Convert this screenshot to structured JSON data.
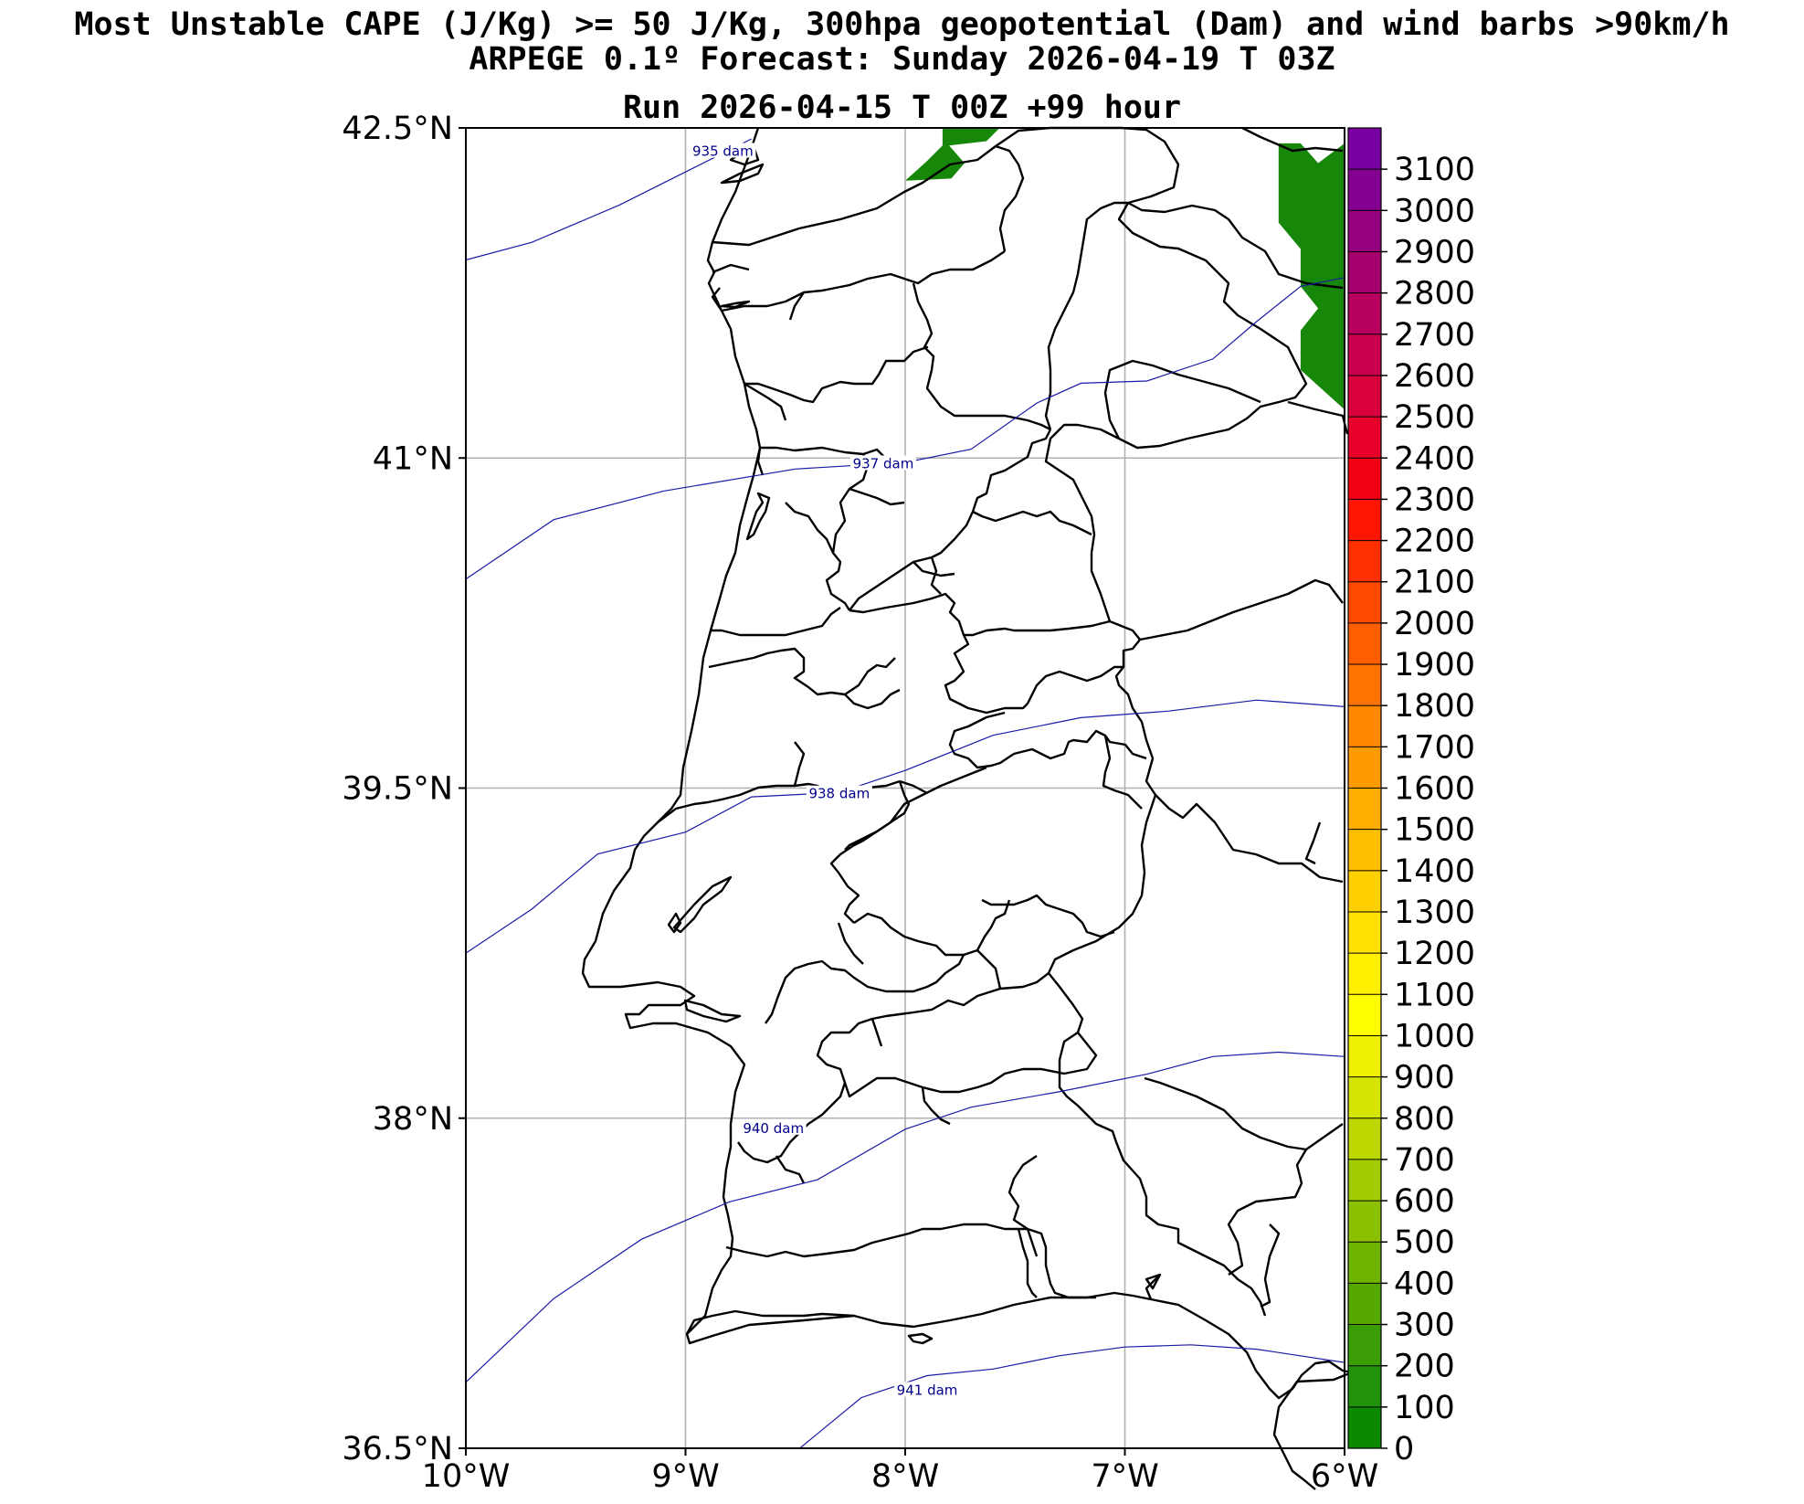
{
  "titles": {
    "line1": "Most Unstable CAPE (J/Kg) >= 50 J/Kg, 300hpa geopotential (Dam) and wind barbs >90km/h",
    "line2": "ARPEGE 0.1º Forecast: Sunday 2026-04-19 T 03Z",
    "line3": "Run 2026-04-15 T 00Z +99 hour"
  },
  "chart_data": {
    "type": "map",
    "lon_range": [
      -10,
      -6
    ],
    "lat_range": [
      36.5,
      42.5
    ],
    "x_ticks": [
      {
        "value": -10,
        "label": "10°W"
      },
      {
        "value": -9,
        "label": "9°W"
      },
      {
        "value": -8,
        "label": "8°W"
      },
      {
        "value": -7,
        "label": "7°W"
      },
      {
        "value": -6,
        "label": "6°W"
      }
    ],
    "y_ticks": [
      {
        "value": 42.5,
        "label": "42.5°N"
      },
      {
        "value": 41,
        "label": "41°N"
      },
      {
        "value": 39.5,
        "label": "39.5°N"
      },
      {
        "value": 38,
        "label": "38°N"
      },
      {
        "value": 36.5,
        "label": "36.5°N"
      }
    ],
    "grid": true,
    "geopotential_contours": [
      {
        "label": "935 dam",
        "label_pos": [
          -8.83,
          42.39
        ],
        "points": [
          [
            -10,
            41.9
          ],
          [
            -9.7,
            41.98
          ],
          [
            -9.3,
            42.15
          ],
          [
            -9.0,
            42.3
          ],
          [
            -8.7,
            42.45
          ]
        ]
      },
      {
        "label": "937 dam",
        "label_pos": [
          -8.1,
          40.97
        ],
        "points": [
          [
            -10,
            40.45
          ],
          [
            -9.6,
            40.72
          ],
          [
            -9.1,
            40.85
          ],
          [
            -8.5,
            40.95
          ],
          [
            -8.0,
            40.98
          ],
          [
            -7.7,
            41.04
          ],
          [
            -7.4,
            41.25
          ],
          [
            -7.2,
            41.34
          ],
          [
            -6.9,
            41.35
          ],
          [
            -6.6,
            41.45
          ],
          [
            -6.4,
            41.62
          ],
          [
            -6.2,
            41.78
          ],
          [
            -6.0,
            41.82
          ]
        ]
      },
      {
        "label": "938 dam",
        "label_pos": [
          -8.3,
          39.47
        ],
        "points": [
          [
            -10,
            38.75
          ],
          [
            -9.7,
            38.95
          ],
          [
            -9.4,
            39.2
          ],
          [
            -9.0,
            39.3
          ],
          [
            -8.7,
            39.46
          ],
          [
            -8.3,
            39.48
          ],
          [
            -8.0,
            39.58
          ],
          [
            -7.6,
            39.74
          ],
          [
            -7.2,
            39.82
          ],
          [
            -6.8,
            39.85
          ],
          [
            -6.4,
            39.9
          ],
          [
            -6.0,
            39.87
          ]
        ]
      },
      {
        "label": "940 dam",
        "label_pos": [
          -8.6,
          37.95
        ],
        "points": [
          [
            -10,
            36.8
          ],
          [
            -9.6,
            37.18
          ],
          [
            -9.2,
            37.45
          ],
          [
            -8.8,
            37.62
          ],
          [
            -8.4,
            37.72
          ],
          [
            -8.0,
            37.95
          ],
          [
            -7.7,
            38.05
          ],
          [
            -7.3,
            38.12
          ],
          [
            -6.9,
            38.2
          ],
          [
            -6.6,
            38.28
          ],
          [
            -6.3,
            38.3
          ],
          [
            -6.0,
            38.28
          ]
        ]
      },
      {
        "label": "941 dam",
        "label_pos": [
          -7.9,
          36.76
        ],
        "points": [
          [
            -8.48,
            36.5
          ],
          [
            -8.2,
            36.73
          ],
          [
            -7.9,
            36.83
          ],
          [
            -7.6,
            36.86
          ],
          [
            -7.3,
            36.92
          ],
          [
            -7.0,
            36.96
          ],
          [
            -6.7,
            36.97
          ],
          [
            -6.4,
            36.95
          ],
          [
            -6.0,
            36.89
          ]
        ]
      }
    ],
    "cape_regions": [
      {
        "value_range": "100-200",
        "color": "#17870a",
        "points": [
          [
            -7.83,
            42.5
          ],
          [
            -7.57,
            42.5
          ],
          [
            -7.63,
            42.44
          ],
          [
            -7.8,
            42.42
          ],
          [
            -7.73,
            42.34
          ],
          [
            -7.79,
            42.27
          ],
          [
            -8.0,
            42.26
          ],
          [
            -7.9,
            42.35
          ],
          [
            -7.83,
            42.42
          ]
        ]
      },
      {
        "value_range": "100-200",
        "color": "#17870a",
        "points": [
          [
            -6.3,
            42.43
          ],
          [
            -6.2,
            42.43
          ],
          [
            -6.12,
            42.34
          ],
          [
            -6.0,
            42.43
          ],
          [
            -6.0,
            41.22
          ],
          [
            -6.2,
            41.4
          ],
          [
            -6.2,
            41.58
          ],
          [
            -6.12,
            41.68
          ],
          [
            -6.2,
            41.78
          ],
          [
            -6.2,
            41.95
          ],
          [
            -6.3,
            42.07
          ],
          [
            -6.3,
            42.2
          ]
        ]
      }
    ],
    "colorbar": {
      "levels": [
        0,
        100,
        200,
        300,
        400,
        500,
        600,
        700,
        800,
        900,
        1000,
        1100,
        1200,
        1300,
        1400,
        1500,
        1600,
        1700,
        1800,
        1900,
        2000,
        2100,
        2200,
        2300,
        2400,
        2500,
        2600,
        2700,
        2800,
        2900,
        3000,
        3100,
        3200
      ],
      "tick_labels": [
        "0",
        "100",
        "200",
        "300",
        "400",
        "500",
        "600",
        "700",
        "800",
        "900",
        "1000",
        "1100",
        "1200",
        "1300",
        "1400",
        "1500",
        "1600",
        "1700",
        "1800",
        "1900",
        "2000",
        "2100",
        "2200",
        "2300",
        "2400",
        "2500",
        "2600",
        "2700",
        "2800",
        "2900",
        "3000",
        "3100"
      ],
      "colors": [
        "#0b8a00",
        "#22930a",
        "#3b9d05",
        "#55a800",
        "#6fb400",
        "#8ac000",
        "#a3cc00",
        "#bcd800",
        "#d5e400",
        "#eef000",
        "#ffff00",
        "#fff000",
        "#ffe000",
        "#ffd000",
        "#ffbf00",
        "#ffad00",
        "#ff9b00",
        "#ff8800",
        "#ff7400",
        "#ff5f00",
        "#ff4800",
        "#ff2f00",
        "#ff1500",
        "#f40014",
        "#e6002a",
        "#d8003d",
        "#c8004e",
        "#b8005f",
        "#a6006f",
        "#95007f",
        "#840090",
        "#7800a0"
      ]
    }
  }
}
